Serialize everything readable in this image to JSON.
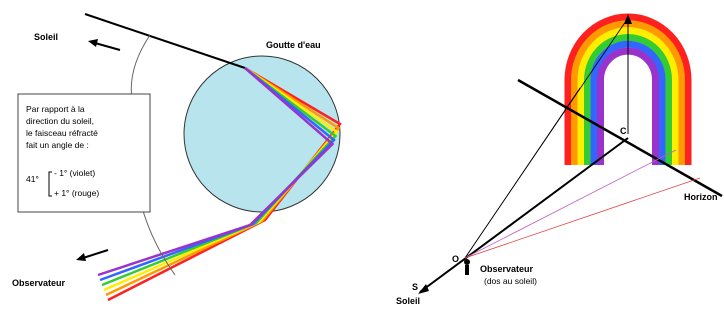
{
  "left": {
    "sun_label": "Soleil",
    "drop_label": "Goutte d'eau",
    "note": {
      "lines": [
        "Par rapport à la",
        "direction du soleil,",
        "le faisceau réfracté",
        "fait un angle de :"
      ],
      "angle": "41°",
      "minus": "- 1° (violet)",
      "plus": "+ 1° (rouge)"
    },
    "observer_label": "Observateur"
  },
  "right": {
    "center_label": "C",
    "horizon_label": "Horizon",
    "observer_point": "O",
    "observer_label": "Observateur",
    "observer_note": "(dos au soleil)",
    "sun_point": "S",
    "sun_label": "Soleil"
  }
}
